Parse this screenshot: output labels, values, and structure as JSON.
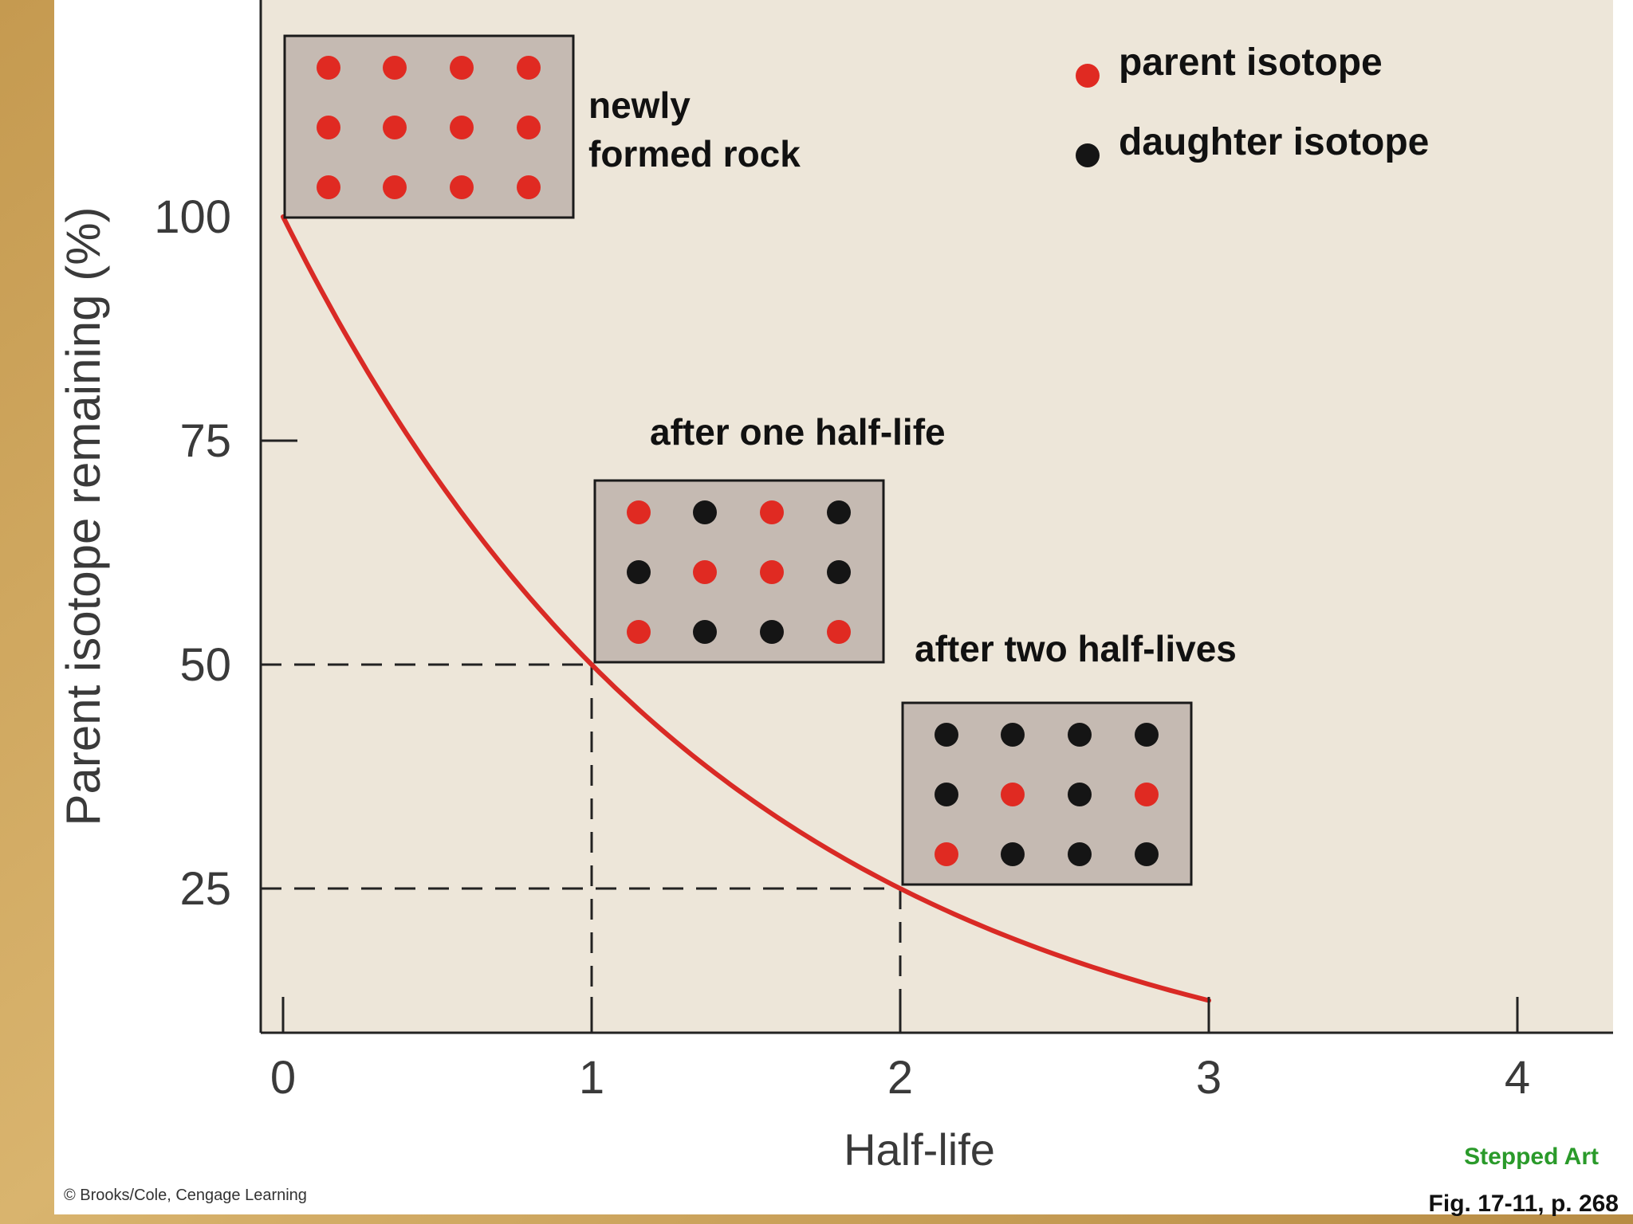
{
  "colors": {
    "plot_bg": "#ede6d9",
    "box_bg": "#c5bab2",
    "parent": "#e02a22",
    "daughter": "#151515",
    "curve": "#d92a25",
    "stepped": "#2a9a2a",
    "axis_text": "#3a3a3a"
  },
  "chart_data": {
    "type": "line",
    "title": "",
    "xlabel": "Half-life",
    "ylabel": "Parent isotope remaining (%)",
    "xlim": [
      0,
      4
    ],
    "ylim": [
      12.5,
      100
    ],
    "xticks": [
      "0",
      "1",
      "2",
      "3",
      "4"
    ],
    "yticks": [
      "100",
      "75",
      "50",
      "25"
    ],
    "series": [
      {
        "x": [
          0,
          0.25,
          0.5,
          0.75,
          1,
          1.25,
          1.5,
          1.75,
          2,
          2.25,
          2.5,
          2.75,
          3
        ],
        "y": [
          100,
          84.1,
          70.7,
          59.5,
          50,
          42,
          35.4,
          29.7,
          25,
          21,
          17.7,
          14.9,
          12.5
        ]
      }
    ],
    "reference_lines": [
      {
        "x": 1,
        "y": 50
      },
      {
        "x": 2,
        "y": 25
      }
    ],
    "legend": {
      "placement": "top-right",
      "items": [
        {
          "label": "parent isotope",
          "icon": "red-dot-icon"
        },
        {
          "label": "daughter isotope",
          "icon": "black-dot-icon"
        }
      ]
    },
    "annotations": [
      {
        "id": "rock",
        "label_lines": [
          "newly",
          "formed rock"
        ],
        "at": {
          "x": 0,
          "y": 100
        },
        "grid": [
          [
            "P",
            "P",
            "P",
            "P"
          ],
          [
            "P",
            "P",
            "P",
            "P"
          ],
          [
            "P",
            "P",
            "P",
            "P"
          ]
        ]
      },
      {
        "id": "one",
        "label_lines": [
          "after one half-life"
        ],
        "at": {
          "x": 1,
          "y": 50
        },
        "grid": [
          [
            "P",
            "D",
            "P",
            "D"
          ],
          [
            "D",
            "P",
            "P",
            "D"
          ],
          [
            "P",
            "D",
            "D",
            "P"
          ]
        ]
      },
      {
        "id": "two",
        "label_lines": [
          "after two half-lives"
        ],
        "at": {
          "x": 2,
          "y": 25
        },
        "grid": [
          [
            "D",
            "D",
            "D",
            "D"
          ],
          [
            "D",
            "P",
            "D",
            "P"
          ],
          [
            "P",
            "D",
            "D",
            "D"
          ]
        ]
      }
    ]
  },
  "credit": "© Brooks/Cole, Cengage Learning",
  "stepped_art": "Stepped Art",
  "fig_ref": "Fig. 17-11, p. 268"
}
